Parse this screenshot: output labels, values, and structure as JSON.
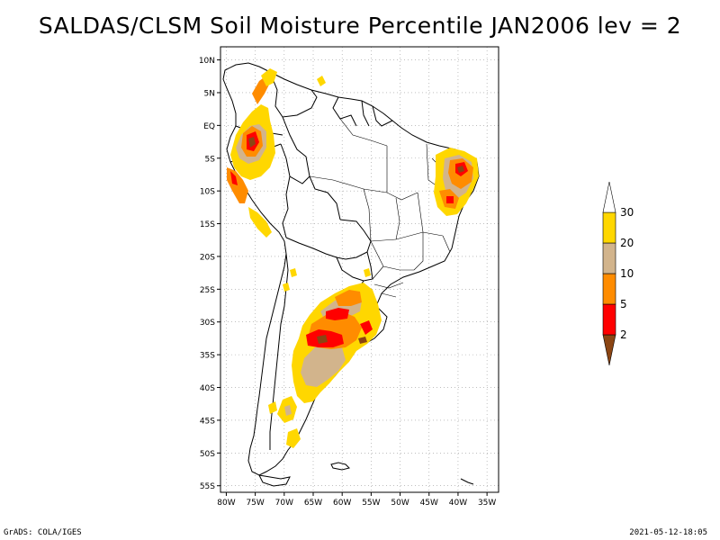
{
  "title": "SALDAS/CLSM Soil Moisture Percentile JAN2006 lev = 2",
  "footer": {
    "left": "GrADS: COLA/IGES",
    "right": "2021-05-12-18:05"
  },
  "map": {
    "lat_range": [
      -56,
      12
    ],
    "lon_range": [
      -81,
      -33
    ],
    "lat_labels": [
      {
        "lat": 10,
        "text": "10N"
      },
      {
        "lat": 5,
        "text": "5N"
      },
      {
        "lat": 0,
        "text": "EQ"
      },
      {
        "lat": -5,
        "text": "5S"
      },
      {
        "lat": -10,
        "text": "10S"
      },
      {
        "lat": -15,
        "text": "15S"
      },
      {
        "lat": -20,
        "text": "20S"
      },
      {
        "lat": -25,
        "text": "25S"
      },
      {
        "lat": -30,
        "text": "30S"
      },
      {
        "lat": -35,
        "text": "35S"
      },
      {
        "lat": -40,
        "text": "40S"
      },
      {
        "lat": -45,
        "text": "45S"
      },
      {
        "lat": -50,
        "text": "50S"
      },
      {
        "lat": -55,
        "text": "55S"
      }
    ],
    "lon_labels": [
      {
        "lon": -80,
        "text": "80W"
      },
      {
        "lon": -75,
        "text": "75W"
      },
      {
        "lon": -70,
        "text": "70W"
      },
      {
        "lon": -65,
        "text": "65W"
      },
      {
        "lon": -60,
        "text": "60W"
      },
      {
        "lon": -55,
        "text": "55W"
      },
      {
        "lon": -50,
        "text": "50W"
      },
      {
        "lon": -45,
        "text": "45W"
      },
      {
        "lon": -40,
        "text": "40W"
      },
      {
        "lon": -35,
        "text": "35W"
      }
    ]
  },
  "legend": {
    "bins": [
      {
        "color": "#8B4513",
        "label": "2"
      },
      {
        "color": "#ff0000",
        "label": "5"
      },
      {
        "color": "#ff8c00",
        "label": "10"
      },
      {
        "color": "#d2b48c",
        "label": "20"
      },
      {
        "color": "#ffd700",
        "label": "30"
      },
      {
        "color": "#ffffff",
        "label": ""
      }
    ]
  },
  "colors": {
    "brown": "#8B4513",
    "red": "#ff0000",
    "orange": "#ff8c00",
    "tan": "#d2b48c",
    "yellow": "#ffd700"
  }
}
